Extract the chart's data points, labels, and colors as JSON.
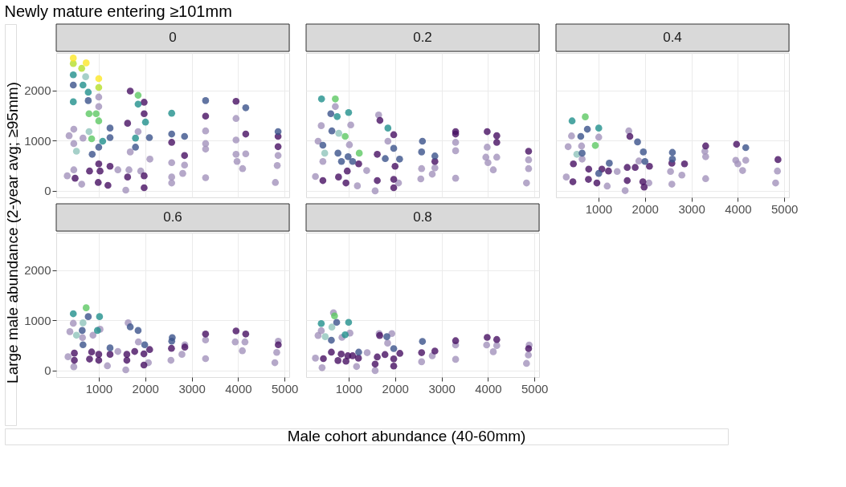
{
  "chart_data": [
    {
      "type": "scatter",
      "title": "0",
      "annotations": [
        "Newly mature entering ≥101mm"
      ],
      "ylabel": "Large male abundance (2-year avg; ≥95mm)",
      "xlim": [
        85,
        5100
      ],
      "ylim": [
        -130,
        2750
      ],
      "xticks": [
        1000,
        2000,
        3000,
        4000,
        5000
      ],
      "yticks": [
        0,
        1000,
        2000
      ],
      "tick_labels": "y",
      "grid": true,
      "legend": false,
      "marker": "circle",
      "series": [
        {
          "color": "#a392bb",
          "x": [
            322,
            463,
            633,
            463,
            362,
            463,
            661,
            1650,
            1582,
            1678,
            2101,
            2570,
            2570,
            2570,
            2808,
            2847,
            3300,
            3300,
            3300,
            3300,
            3955,
            3955,
            3977,
            4096,
            4164,
            3955,
            4860,
            4842,
            4802,
            1412,
            1847,
            1904,
            1000,
            1000
          ],
          "values": [
            300,
            419,
            133,
            943,
            1100,
            1229,
            1052,
            419,
            14,
            776,
            633,
            562,
            276,
            157,
            348,
            514,
            1195,
            943,
            262,
            833,
            1014,
            729,
            586,
            443,
            738,
            1443,
            705,
            505,
            167,
            419,
            1181,
            395,
            1871,
            1681
          ]
        },
        {
          "color": "#90c4bc",
          "x": [
            520,
            791,
            718
          ],
          "values": [
            790,
            1181,
            2276
          ]
        },
        {
          "color": "#471063",
          "x": [
            1678,
            3955,
            1977,
            1977,
            1621,
            3300,
            4860,
            4860,
            2847,
            1000,
            1028,
            1243,
            989,
            1198,
            1621,
            1977,
            1977,
            2570,
            4164,
            802,
            491
          ],
          "values": [
            1990,
            1786,
            1767,
            1538,
            1348,
            1490,
            1086,
            881,
            705,
            538,
            395,
            490,
            167,
            110,
            276,
            62,
            300,
            967,
            1133,
            395,
            252
          ]
        },
        {
          "color": "#3b528b",
          "x": [
            452,
            774,
            1243,
            3300,
            2090,
            2570,
            2847,
            1791,
            859,
            1243,
            1000,
            4164,
            4860
          ],
          "values": [
            2110,
            1800,
            1252,
            1800,
            1062,
            1133,
            1086,
            871,
            729,
            1062,
            871,
            1657,
            1181
          ]
        },
        {
          "color": "#21908c",
          "x": [
            452,
            452,
            661,
            774,
            1847,
            2570,
            2006,
            1791,
            1085
          ],
          "values": [
            2314,
            1776,
            2110,
            1967,
            1729,
            1548,
            1371,
            1052,
            990
          ]
        },
        {
          "color": "#5dc863",
          "x": [
            1847,
            791,
            944,
            1000,
            847
          ],
          "values": [
            1905,
            1538,
            1538,
            1395,
            1038
          ]
        },
        {
          "color": "#b5de2b",
          "x": [
            452,
            633,
            1000
          ],
          "values": [
            2538,
            2443,
            2062
          ]
        },
        {
          "color": "#fde725",
          "x": [
            452,
            729,
            1000
          ],
          "values": [
            2648,
            2552,
            2238
          ]
        }
      ]
    },
    {
      "type": "scatter",
      "title": "0.2",
      "xlim": [
        85,
        5100
      ],
      "ylim": [
        -130,
        2750
      ],
      "xticks": [
        1000,
        2000,
        3000,
        4000,
        5000
      ],
      "yticks": [
        0,
        1000,
        2000
      ],
      "tick_labels": false,
      "grid": true,
      "legend": false,
      "marker": "circle",
      "series": [
        {
          "color": "#a392bb",
          "x": [
            286,
            446,
            411,
            343,
            714,
            1046,
            1017,
            1646,
            1846,
            1389,
            1571,
            2571,
            2554,
            2800,
            2857,
            3303,
            3303,
            3303,
            3983,
            3954,
            4000,
            4114,
            4189,
            4874,
            4874,
            4829,
            1189,
            2074
          ],
          "values": [
            286,
            586,
            1300,
            990,
            1681,
            1314,
            919,
            1514,
            990,
            405,
            0,
            443,
            238,
            333,
            457,
            967,
            800,
            252,
            871,
            671,
            562,
            419,
            671,
            619,
            443,
            157,
            100,
            157
          ]
        },
        {
          "color": "#90c4bc",
          "x": [
            789,
            486
          ],
          "values": [
            1148,
            752
          ]
        },
        {
          "color": "#471063",
          "x": [
            1674,
            1971,
            3303,
            3983,
            4189,
            4189,
            4874,
            1617,
            1217,
            971,
            783,
            1971,
            1971,
            2857,
            3303,
            1617,
            943,
            446,
            2000
          ],
          "values": [
            1405,
            1119,
            1181,
            1181,
            1100,
            967,
            790,
            729,
            538,
            395,
            276,
            62,
            229,
            586,
            1133,
            205,
            157,
            205,
            490
          ]
        },
        {
          "color": "#3b528b",
          "x": [
            617,
            640,
            446,
            771,
            989,
            846,
            1086,
            1789,
            1971,
            2097,
            2589,
            2857,
            2571
          ],
          "values": [
            1538,
            1195,
            910,
            752,
            681,
            586,
            586,
            643,
            848,
            633,
            990,
            695,
            776
          ]
        },
        {
          "color": "#21908c",
          "x": [
            417,
            1000,
            754,
            1846
          ],
          "values": [
            1833,
            1562,
            1481,
            1252
          ]
        },
        {
          "color": "#5dc863",
          "x": [
            714,
            926,
            1229
          ],
          "values": [
            1833,
            1086,
            752
          ]
        }
      ]
    },
    {
      "type": "scatter",
      "title": "0.4",
      "xlim": [
        85,
        5100
      ],
      "ylim": [
        -130,
        2750
      ],
      "xticks": [
        1000,
        2000,
        3000,
        4000,
        5000
      ],
      "yticks": [
        0,
        1000,
        2000
      ],
      "tick_labels": "x",
      "grid": true,
      "legend": false,
      "marker": "circle",
      "series": [
        {
          "color": "#a392bb",
          "x": [
            307,
            347,
            420,
            636,
            648,
            1006,
            1653,
            1869,
            2085,
            1574,
            1403,
            2551,
            2580,
            2795,
            3307,
            3307,
            3955,
            4000,
            4170,
            4102,
            4852,
            4813,
            1188,
            3290
          ],
          "values": [
            276,
            881,
            1095,
            895,
            633,
            1071,
            1195,
            595,
            157,
            5,
            386,
            386,
            133,
            314,
            681,
            243,
            610,
            538,
            610,
            405,
            395,
            157,
            95,
            790
          ]
        },
        {
          "color": "#90c4bc",
          "x": [
            534
          ],
          "values": [
            729
          ]
        },
        {
          "color": "#471063",
          "x": [
            460,
            790,
            1074,
            1216,
            1676,
            1619,
            1790,
            2097,
            1983,
            1955,
            2580,
            2852,
            3307,
            3972,
            4864,
            1619,
            784,
            966,
            449
          ],
          "values": [
            538,
            433,
            433,
            395,
            1086,
            467,
            467,
            490,
            76,
            181,
            552,
            538,
            895,
            929,
            624,
            205,
            229,
            157,
            181
          ]
        },
        {
          "color": "#3b528b",
          "x": [
            619,
            761,
            648,
            1233,
            1841,
            1966,
            2000,
            2591,
            2591,
            4170,
            1006
          ],
          "values": [
            1086,
            1229,
            752,
            552,
            976,
            776,
            586,
            767,
            633,
            862,
            348
          ]
        },
        {
          "color": "#21908c",
          "x": [
            432,
            1006
          ],
          "values": [
            1395,
            1252
          ]
        },
        {
          "color": "#5dc863",
          "x": [
            716,
            932
          ],
          "values": [
            1476,
            905
          ]
        }
      ]
    },
    {
      "type": "scatter",
      "title": "0.6",
      "xlabel": "Male cohort abundance (40-60mm)",
      "xlim": [
        85,
        5100
      ],
      "ylim": [
        -130,
        2750
      ],
      "xticks": [
        1000,
        2000,
        3000,
        4000,
        5000
      ],
      "yticks": [
        0,
        1000,
        2000
      ],
      "grid": true,
      "legend": false,
      "marker": "circle",
      "series": [
        {
          "color": "#a392bb",
          "x": [
            339,
            379,
            452,
            650,
            876,
            1028,
            1633,
            1853,
            1412,
            1582,
            2068,
            2554,
            2791,
            2853,
            3299,
            3299,
            3938,
            4091,
            4147,
            4864,
            4831,
            4791,
            1186,
            463
          ],
          "values": [
            276,
            776,
            943,
            657,
            705,
            824,
            952,
            571,
            381,
            14,
            157,
            205,
            324,
            514,
            610,
            238,
            571,
            395,
            571,
            586,
            362,
            157,
            95,
            76
          ]
        },
        {
          "color": "#90c4bc",
          "x": [
            520,
            661
          ],
          "values": [
            705,
            952
          ]
        },
        {
          "color": "#471063",
          "x": [
            475,
            847,
            1000,
            1243,
            1605,
            1774,
            2096,
            1972,
            1972,
            2565,
            2853,
            3299,
            3955,
            4164,
            4864,
            1605,
            802,
            475,
            1000
          ],
          "values": [
            348,
            371,
            324,
            324,
            324,
            381,
            419,
            110,
            333,
            443,
            467,
            729,
            790,
            729,
            514,
            205,
            229,
            205,
            205
          ]
        },
        {
          "color": "#3b528b",
          "x": [
            774,
            644,
            661,
            1243,
            1847,
            1989,
            2582,
            1678,
            2571
          ],
          "values": [
            1076,
            800,
            514,
            452,
            800,
            514,
            657,
            871,
            586
          ]
        },
        {
          "color": "#21908c",
          "x": [
            452,
            1017,
            972
          ],
          "values": [
            1133,
            1076,
            800
          ]
        },
        {
          "color": "#5dc863",
          "x": [
            729
          ],
          "values": [
            1252
          ]
        }
      ]
    },
    {
      "type": "scatter",
      "title": "0.8",
      "xlim": [
        85,
        5100
      ],
      "ylim": [
        -130,
        2750
      ],
      "xticks": [
        1000,
        2000,
        3000,
        4000,
        5000
      ],
      "yticks": [
        0,
        1000,
        2000
      ],
      "tick_labels": "x",
      "grid": true,
      "legend": false,
      "marker": "circle",
      "series": [
        {
          "color": "#a392bb",
          "x": [
            286,
            343,
            411,
            674,
            857,
            1029,
            1657,
            1931,
            1840,
            1400,
            1571,
            2571,
            2800,
            3303,
            3303,
            3971,
            4114,
            4189,
            4886,
            4869,
            4829,
            1171,
            429
          ],
          "values": [
            248,
            700,
            795,
            1152,
            662,
            748,
            738,
            738,
            548,
            357,
            0,
            176,
            295,
            510,
            224,
            510,
            376,
            500,
            510,
            310,
            143,
            81,
            57
          ]
        },
        {
          "color": "#90c4bc",
          "x": [
            497,
            640
          ],
          "values": [
            676,
            867
          ]
        },
        {
          "color": "#471063",
          "x": [
            629,
            840,
            983,
            1086,
            457,
            771,
            943,
            1211,
            1669,
            1617,
            1783,
            1971,
            2103,
            1971,
            2571,
            2857,
            3303,
            3983,
            4189,
            4874,
            1571
          ],
          "values": [
            367,
            329,
            295,
            295,
            238,
            200,
            186,
            248,
            700,
            271,
            319,
            233,
            343,
            90,
            357,
            390,
            595,
            662,
            619,
            438,
            129
          ]
        },
        {
          "color": "#3b528b",
          "x": [
            743,
            629,
            1823,
            1971,
            2589,
            1217
          ],
          "values": [
            962,
            605,
            676,
            438,
            581,
            367
          ]
        },
        {
          "color": "#21908c",
          "x": [
            1000,
            926,
            411
          ],
          "values": [
            962,
            714,
            938
          ]
        },
        {
          "color": "#5dc863",
          "x": [
            697
          ],
          "values": [
            1090
          ]
        }
      ]
    }
  ]
}
